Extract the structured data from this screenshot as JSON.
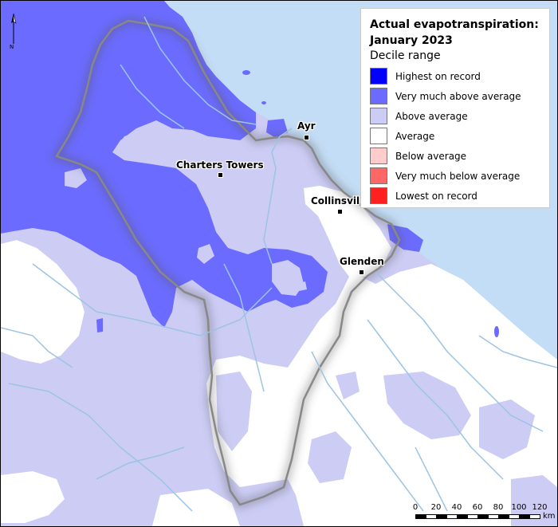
{
  "legend": {
    "title_line1": "Actual evapotranspiration:",
    "title_line2": "January 2023",
    "subtitle": "Decile range",
    "items": [
      {
        "label": "Highest on record",
        "color": "#0000ff"
      },
      {
        "label": "Very much above average",
        "color": "#6b6bff"
      },
      {
        "label": "Above average",
        "color": "#ccccf5"
      },
      {
        "label": "Average",
        "color": "#ffffff"
      },
      {
        "label": "Below average",
        "color": "#ffcccc"
      },
      {
        "label": "Very much below average",
        "color": "#ff6666"
      },
      {
        "label": "Lowest on record",
        "color": "#ff2020"
      }
    ]
  },
  "places": [
    {
      "name": "Ayr"
    },
    {
      "name": "Charters Towers"
    },
    {
      "name": "Collinsvil"
    },
    {
      "name": "Glenden"
    }
  ],
  "north_arrow": {
    "letter": "N"
  },
  "scale_bar": {
    "ticks": [
      "0",
      "20",
      "40",
      "60",
      "80",
      "100",
      "120"
    ],
    "unit": "km"
  },
  "colors": {
    "ocean": "#c4ddf6",
    "river": "#9cc4e4",
    "boundary": "#888888"
  }
}
